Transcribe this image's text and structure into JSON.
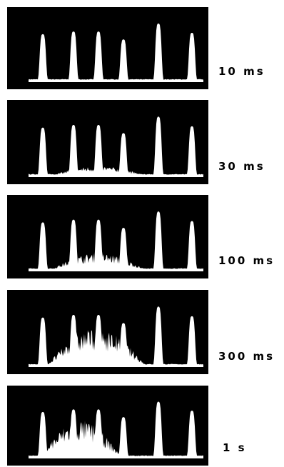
{
  "panels": [
    {
      "label": "10 ms"
    },
    {
      "label": "30 ms"
    },
    {
      "label": "100 ms"
    },
    {
      "label": "300 ms"
    },
    {
      "label": "1 s"
    }
  ]
}
